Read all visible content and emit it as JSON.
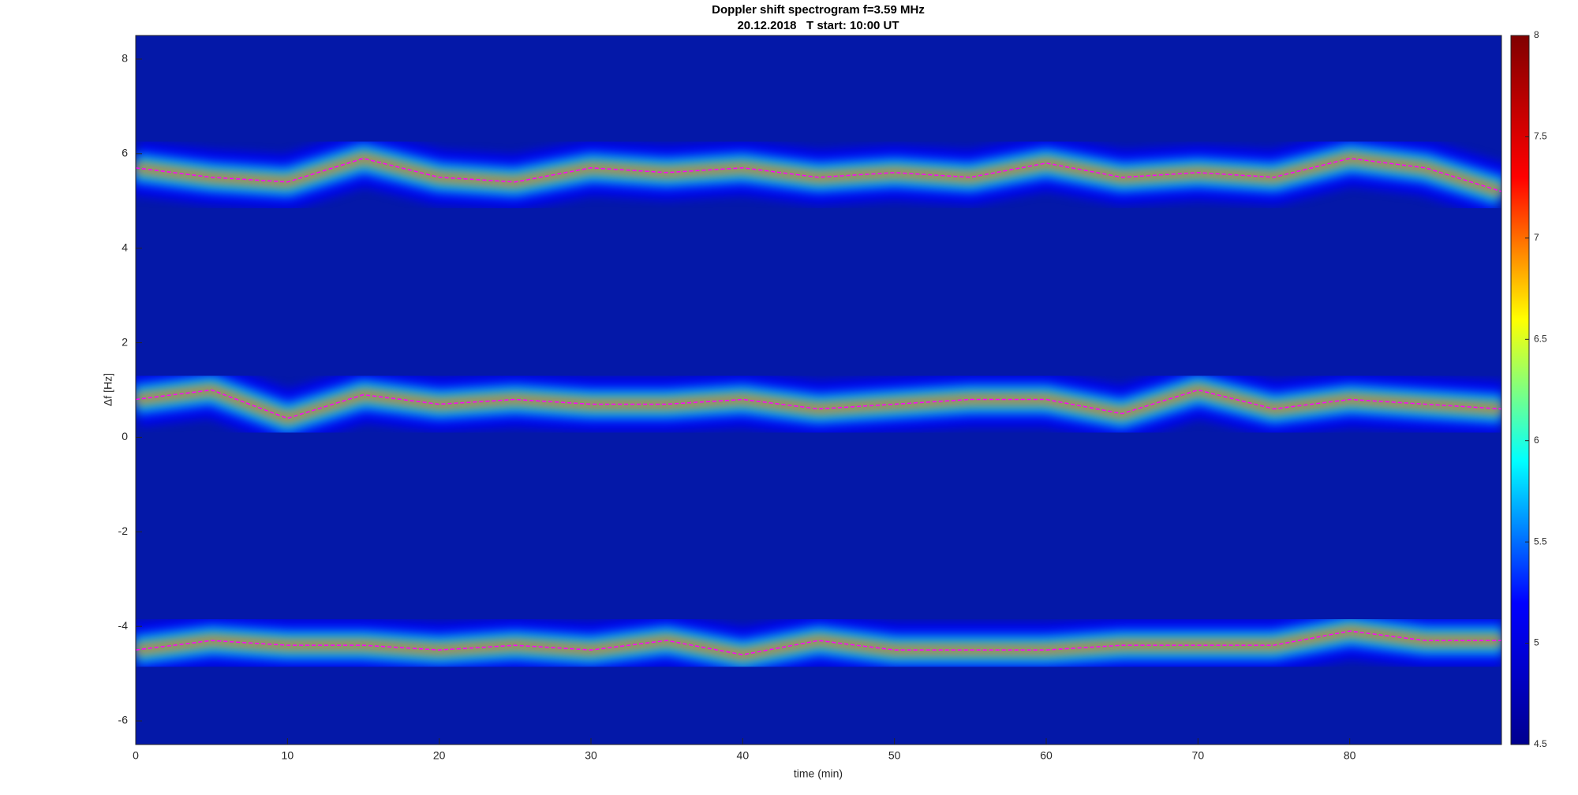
{
  "chart_data": {
    "type": "spectrogram",
    "title": "Doppler shift spectrogram f=3.59 MHz",
    "subtitle": "20.12.2018   T start: 10:00 UT",
    "x_label": "time (min)",
    "y_label": "Δf [Hz]",
    "x": [
      0,
      5,
      10,
      15,
      20,
      25,
      30,
      35,
      40,
      45,
      50,
      55,
      60,
      65,
      70,
      75,
      80,
      85,
      90
    ],
    "series": [
      {
        "color": "#ff00ff",
        "values": [
          5.7,
          5.5,
          5.4,
          5.9,
          5.5,
          5.4,
          5.7,
          5.6,
          5.7,
          5.5,
          5.6,
          5.5,
          5.8,
          5.5,
          5.6,
          5.5,
          5.9,
          5.7,
          5.2
        ]
      },
      {
        "color": "#ff00ff",
        "values": [
          0.8,
          1.0,
          0.4,
          0.9,
          0.7,
          0.8,
          0.7,
          0.7,
          0.8,
          0.6,
          0.7,
          0.8,
          0.8,
          0.5,
          1.0,
          0.6,
          0.8,
          0.7,
          0.6
        ]
      },
      {
        "color": "#ff00ff",
        "values": [
          -4.5,
          -4.3,
          -4.4,
          -4.4,
          -4.5,
          -4.4,
          -4.5,
          -4.3,
          -4.6,
          -4.3,
          -4.5,
          -4.5,
          -4.5,
          -4.4,
          -4.4,
          -4.4,
          -4.1,
          -4.3,
          -4.3
        ]
      }
    ],
    "xlim": [
      0,
      90
    ],
    "xticks": [
      0,
      10,
      20,
      30,
      40,
      50,
      60,
      70,
      80
    ],
    "ylim": [
      -6.5,
      8.5
    ],
    "yticks": [
      -6,
      -4,
      -2,
      0,
      2,
      4,
      6,
      8
    ],
    "clim": [
      4.5,
      8
    ],
    "cticks": [
      4.5,
      5,
      5.5,
      6,
      6.5,
      7,
      7.5,
      8
    ],
    "background_color": "#0418a8",
    "colormap": [
      "#00008f",
      "#0000ff",
      "#00ffff",
      "#ffff00",
      "#ff0000",
      "#800000"
    ]
  }
}
